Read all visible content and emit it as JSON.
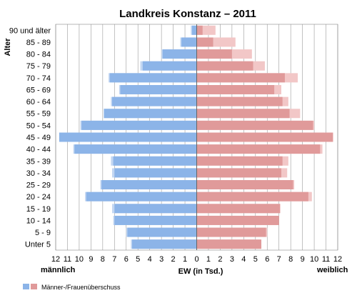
{
  "chart_data": {
    "type": "bar",
    "subtype": "population-pyramid",
    "title": "Landkreis Konstanz – 2011",
    "ylabel": "Alter",
    "xlabel": "EW (in Tsd.)",
    "left_label": "männlich",
    "right_label": "weiblich",
    "xlim": [
      -12,
      12
    ],
    "xticks": [
      "12",
      "11",
      "10",
      "9",
      "8",
      "7",
      "6",
      "5",
      "4",
      "3",
      "2",
      "1",
      "0",
      "1",
      "2",
      "3",
      "4",
      "5",
      "6",
      "7",
      "8",
      "9",
      "10",
      "11",
      "12"
    ],
    "grid": true,
    "categories": [
      "90 und älter",
      "85 - 89",
      "80 - 84",
      "75 - 79",
      "70 - 74",
      "65 - 69",
      "60 - 64",
      "55 - 59",
      "50 - 54",
      "45 - 49",
      "40 - 44",
      "35 - 39",
      "30 - 34",
      "25 - 29",
      "20 - 24",
      "15 - 19",
      "10 - 14",
      "5 - 9",
      "Unter 5"
    ],
    "series": [
      {
        "values": [
          0.5,
          1.4,
          3.0,
          4.8,
          7.5,
          6.6,
          7.3,
          7.9,
          9.9,
          11.7,
          10.5,
          7.3,
          7.2,
          8.2,
          9.5,
          7.2,
          7.1,
          6.0,
          5.6
        ]
      },
      {
        "values": [
          0.4,
          1.3,
          2.9,
          4.6,
          7.4,
          6.5,
          7.2,
          7.9,
          9.8,
          11.7,
          10.4,
          7.1,
          7.0,
          8.1,
          9.4,
          7.0,
          7.0,
          5.9,
          5.5
        ]
      },
      {
        "name": "Männer-/Frauenüberschuss",
        "values": [
          0.1,
          0.1,
          0.1,
          0.2,
          0.1,
          0.1,
          0.1,
          0.0,
          0.1,
          0.0,
          0.1,
          0.2,
          0.2,
          0.1,
          0.1,
          0.2,
          0.1,
          0.1,
          0.1
        ]
      }
    ],
    "female_values": [
      1.6,
      3.3,
      4.7,
      5.8,
      8.6,
      7.2,
      7.8,
      8.8,
      10.0,
      11.6,
      10.7,
      7.8,
      7.7,
      8.3,
      9.8,
      7.1,
      7.0,
      6.0,
      5.5
    ],
    "female_inner": [
      0.5,
      1.4,
      3.0,
      4.8,
      7.5,
      6.6,
      7.3,
      7.9,
      9.9,
      11.6,
      10.5,
      7.3,
      7.2,
      8.2,
      9.5,
      7.1,
      7.0,
      5.9,
      5.5
    ],
    "colors": {
      "male": "#8cb4e8",
      "male_light": "#c3d7f2",
      "female": "#e09a9a",
      "female_light": "#f2c7c7",
      "grid": "#9a9a9a"
    }
  }
}
